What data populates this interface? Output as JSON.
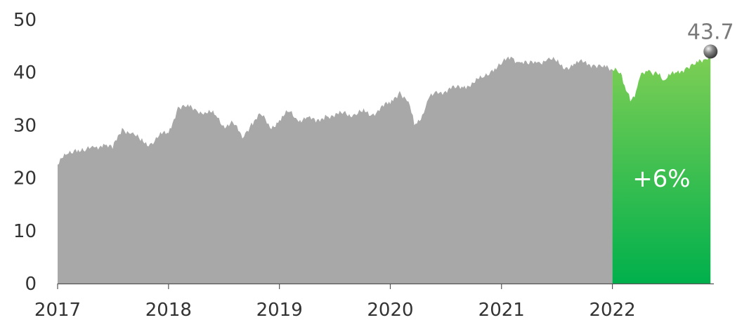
{
  "chart_data": {
    "type": "area",
    "title": "",
    "xlabel": "",
    "ylabel": "",
    "ylim": [
      0,
      50
    ],
    "xlim": [
      "2017-01-01",
      "2022-12-01"
    ],
    "yticks": [
      "0",
      "10",
      "20",
      "30",
      "40",
      "50"
    ],
    "xticks": [
      "2017",
      "2018",
      "2019",
      "2020",
      "2021",
      "2022"
    ],
    "grid": false,
    "legend": "none",
    "colors": {
      "history_fill": "#a8a8a8",
      "highlight_fill_top": "#7fcf55",
      "highlight_fill_bottom": "#00b04c",
      "axis": "#555555",
      "end_marker": "#707070",
      "end_label": "#7a7a7a",
      "highlight_label": "#ffffff"
    },
    "series": [
      {
        "values": [
          [
            "2017-01-01",
            22.5
          ],
          [
            "2017-02-01",
            24.5
          ],
          [
            "2017-03-01",
            25.5
          ],
          [
            "2017-04-01",
            25.0
          ],
          [
            "2017-05-01",
            25.8
          ],
          [
            "2017-06-01",
            26.5
          ],
          [
            "2017-07-01",
            25.5
          ],
          [
            "2017-08-01",
            29.5
          ],
          [
            "2017-09-01",
            28.5
          ],
          [
            "2017-10-01",
            27.0
          ],
          [
            "2017-11-01",
            26.5
          ],
          [
            "2017-12-01",
            28.0
          ],
          [
            "2018-01-01",
            28.5
          ],
          [
            "2018-02-01",
            33.5
          ],
          [
            "2018-03-01",
            33.5
          ],
          [
            "2018-04-01",
            33.0
          ],
          [
            "2018-05-01",
            32.5
          ],
          [
            "2018-06-01",
            32.0
          ],
          [
            "2018-07-01",
            30.0
          ],
          [
            "2018-08-01",
            30.5
          ],
          [
            "2018-09-01",
            27.5
          ],
          [
            "2018-10-01",
            30.5
          ],
          [
            "2018-11-01",
            32.0
          ],
          [
            "2018-12-01",
            29.5
          ],
          [
            "2019-01-01",
            31.0
          ],
          [
            "2019-02-01",
            32.5
          ],
          [
            "2019-03-01",
            31.0
          ],
          [
            "2019-04-01",
            31.5
          ],
          [
            "2019-05-01",
            30.5
          ],
          [
            "2019-06-01",
            32.0
          ],
          [
            "2019-07-01",
            31.5
          ],
          [
            "2019-08-01",
            32.5
          ],
          [
            "2019-09-01",
            32.0
          ],
          [
            "2019-10-01",
            32.5
          ],
          [
            "2019-11-01",
            32.0
          ],
          [
            "2019-12-01",
            33.5
          ],
          [
            "2020-01-01",
            34.0
          ],
          [
            "2020-02-01",
            36.5
          ],
          [
            "2020-03-01",
            34.5
          ],
          [
            "2020-03-20",
            30.0
          ],
          [
            "2020-04-15",
            32.0
          ],
          [
            "2020-05-01",
            34.5
          ],
          [
            "2020-06-01",
            36.5
          ],
          [
            "2020-07-01",
            36.5
          ],
          [
            "2020-08-01",
            37.0
          ],
          [
            "2020-09-01",
            37.5
          ],
          [
            "2020-10-01",
            38.0
          ],
          [
            "2020-11-01",
            39.0
          ],
          [
            "2020-12-01",
            40.5
          ],
          [
            "2021-01-01",
            41.5
          ],
          [
            "2021-02-01",
            43.0
          ],
          [
            "2021-03-01",
            42.0
          ],
          [
            "2021-04-01",
            41.5
          ],
          [
            "2021-05-01",
            42.0
          ],
          [
            "2021-06-01",
            42.5
          ],
          [
            "2021-07-01",
            42.0
          ],
          [
            "2021-08-01",
            41.0
          ],
          [
            "2021-09-01",
            41.5
          ],
          [
            "2021-10-01",
            42.0
          ],
          [
            "2021-11-01",
            41.5
          ],
          [
            "2021-12-01",
            41.0
          ],
          [
            "2022-01-01",
            40.5
          ]
        ]
      },
      {
        "highlight_label": "+6%",
        "values": [
          [
            "2022-01-01",
            40.5
          ],
          [
            "2022-01-20",
            40.0
          ],
          [
            "2022-02-01",
            39.5
          ],
          [
            "2022-02-15",
            36.5
          ],
          [
            "2022-03-01",
            34.5
          ],
          [
            "2022-03-20",
            36.5
          ],
          [
            "2022-04-01",
            39.0
          ],
          [
            "2022-05-01",
            40.5
          ],
          [
            "2022-05-20",
            40.0
          ],
          [
            "2022-06-01",
            39.5
          ],
          [
            "2022-06-20",
            38.5
          ],
          [
            "2022-07-01",
            39.0
          ],
          [
            "2022-08-01",
            40.0
          ],
          [
            "2022-09-01",
            41.0
          ],
          [
            "2022-10-01",
            41.5
          ],
          [
            "2022-11-01",
            42.5
          ],
          [
            "2022-11-20",
            43.7
          ]
        ],
        "end_value_label": "43.7"
      }
    ]
  }
}
